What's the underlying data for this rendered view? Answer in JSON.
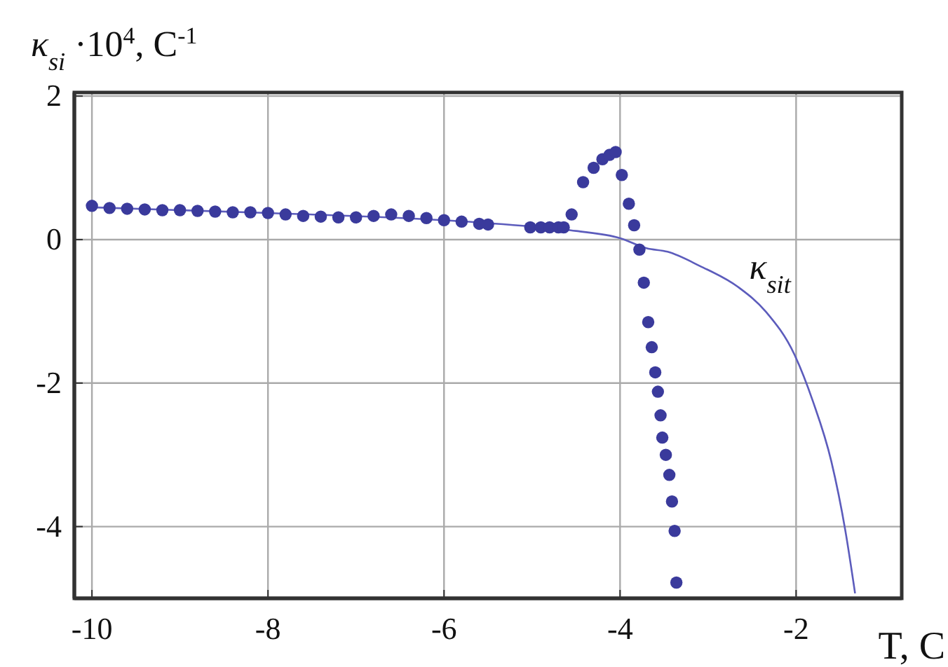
{
  "chart_data": {
    "type": "scatter",
    "xlabel": "T, C",
    "ylabel": "κ$_{si}$ ·10$^{4}$, C$^{-1}$",
    "xlim": [
      -10.2,
      -0.8
    ],
    "ylim": [
      -5,
      2.05
    ],
    "xticks": [
      -10,
      -8,
      -6,
      -4,
      -2
    ],
    "yticks": [
      -4,
      -2,
      0,
      2
    ],
    "grid": true,
    "series": [
      {
        "type": "line",
        "name": "κ$_{sit}$",
        "color": "#5c5cbc",
        "x": [
          -10,
          -8,
          -6,
          -5,
          -4.5,
          -4,
          -3.7,
          -3.46,
          -3.09,
          -2.66,
          -2.34,
          -2.02,
          -1.81,
          -1.6,
          -1.44,
          -1.33
        ],
        "values": [
          0.45,
          0.37,
          0.27,
          0.18,
          0.12,
          0.02,
          -0.12,
          -0.17,
          -0.37,
          -0.66,
          -1.01,
          -1.6,
          -2.25,
          -3.09,
          -4.06,
          -4.93
        ]
      },
      {
        "marker": "circle",
        "color": "#3a3a9c",
        "x": [
          -10,
          -9.8,
          -9.6,
          -9.4,
          -9.2,
          -9,
          -8.8,
          -8.6,
          -8.4,
          -8.2,
          -8,
          -7.8,
          -7.6,
          -7.4,
          -7.2,
          -7,
          -6.8,
          -6.6,
          -6.4,
          -6.2,
          -6,
          -5.8,
          -5.6,
          -5.5,
          -5.02,
          -4.9,
          -4.8,
          -4.7,
          -4.64,
          -4.55,
          -4.42,
          -4.3,
          -4.2,
          -4.12,
          -4.05,
          -3.98,
          -3.9,
          -3.84,
          -3.78,
          -3.73,
          -3.68,
          -3.64,
          -3.6,
          -3.57,
          -3.54,
          -3.52,
          -3.48,
          -3.44,
          -3.41,
          -3.38,
          -3.36
        ],
        "values": [
          0.47,
          0.44,
          0.43,
          0.42,
          0.41,
          0.41,
          0.4,
          0.39,
          0.38,
          0.38,
          0.37,
          0.35,
          0.33,
          0.32,
          0.31,
          0.31,
          0.33,
          0.35,
          0.33,
          0.3,
          0.27,
          0.25,
          0.22,
          0.21,
          0.17,
          0.17,
          0.17,
          0.17,
          0.17,
          0.35,
          0.8,
          1.0,
          1.12,
          1.18,
          1.22,
          0.9,
          0.5,
          0.2,
          -0.14,
          -0.6,
          -1.15,
          -1.5,
          -1.85,
          -2.12,
          -2.45,
          -2.76,
          -3.0,
          -3.28,
          -3.65,
          -4.06,
          -4.78
        ]
      }
    ]
  }
}
